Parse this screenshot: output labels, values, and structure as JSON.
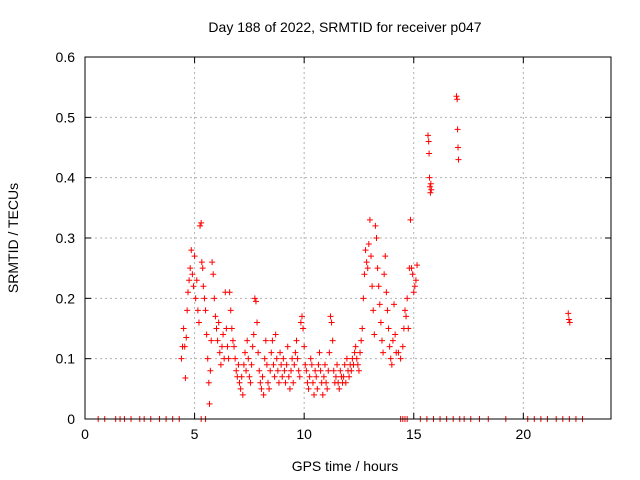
{
  "chart_data": {
    "type": "scatter",
    "title": "Day 188 of 2022, SRMTID for receiver p047",
    "xlabel": "GPS time / hours",
    "ylabel": "SRMTID / TECUs",
    "xlim": [
      0,
      24
    ],
    "ylim": [
      0,
      0.6
    ],
    "xticks": [
      0,
      5,
      10,
      15,
      20
    ],
    "yticks": [
      0,
      0.1,
      0.2,
      0.3,
      0.4,
      0.5,
      0.6
    ],
    "xtick_labels": [
      "0",
      "5",
      "10",
      "15",
      "20"
    ],
    "ytick_labels": [
      "0",
      "0.1",
      "0.2",
      "0.3",
      "0.4",
      "0.5",
      "0.6"
    ],
    "grid": true,
    "marker": "+",
    "color": "#ff0000",
    "series": [
      {
        "name": "SRMTID",
        "points": [
          [
            0.6,
            0
          ],
          [
            0.9,
            0
          ],
          [
            1.4,
            0
          ],
          [
            1.6,
            0
          ],
          [
            1.8,
            0
          ],
          [
            2.1,
            0
          ],
          [
            2.5,
            0
          ],
          [
            2.7,
            0
          ],
          [
            3.0,
            0
          ],
          [
            3.4,
            0
          ],
          [
            3.7,
            0
          ],
          [
            4.0,
            0
          ],
          [
            4.3,
            0
          ],
          [
            5.3,
            0
          ],
          [
            5.5,
            0
          ],
          [
            14.4,
            0
          ],
          [
            14.5,
            0
          ],
          [
            14.6,
            0
          ],
          [
            14.7,
            0
          ],
          [
            15.3,
            0
          ],
          [
            15.6,
            0
          ],
          [
            15.9,
            0
          ],
          [
            16.2,
            0
          ],
          [
            16.5,
            0
          ],
          [
            16.8,
            0
          ],
          [
            17.1,
            0
          ],
          [
            17.3,
            0
          ],
          [
            17.6,
            0
          ],
          [
            18.0,
            0
          ],
          [
            18.4,
            0
          ],
          [
            19.2,
            0
          ],
          [
            20.2,
            0
          ],
          [
            20.5,
            0
          ],
          [
            20.8,
            0
          ],
          [
            21.1,
            0
          ],
          [
            21.5,
            0
          ],
          [
            21.8,
            0
          ],
          [
            22.1,
            0
          ],
          [
            22.4,
            0
          ],
          [
            22.7,
            0
          ],
          [
            4.4,
            0.1
          ],
          [
            4.45,
            0.12
          ],
          [
            4.5,
            0.15
          ],
          [
            4.55,
            0.12
          ],
          [
            4.58,
            0.068
          ],
          [
            4.62,
            0.135
          ],
          [
            4.66,
            0.18
          ],
          [
            4.7,
            0.21
          ],
          [
            4.75,
            0.23
          ],
          [
            4.8,
            0.25
          ],
          [
            4.85,
            0.28
          ],
          [
            4.9,
            0.24
          ],
          [
            4.95,
            0.22
          ],
          [
            5.0,
            0.27
          ],
          [
            5.05,
            0.2
          ],
          [
            5.1,
            0.23
          ],
          [
            5.15,
            0.18
          ],
          [
            5.2,
            0.16
          ],
          [
            5.25,
            0.32
          ],
          [
            5.3,
            0.325
          ],
          [
            5.33,
            0.26
          ],
          [
            5.37,
            0.25
          ],
          [
            5.4,
            0.22
          ],
          [
            5.45,
            0.2
          ],
          [
            5.5,
            0.18
          ],
          [
            5.55,
            0.14
          ],
          [
            5.6,
            0.1
          ],
          [
            5.65,
            0.06
          ],
          [
            5.68,
            0.025
          ],
          [
            5.72,
            0.08
          ],
          [
            5.76,
            0.13
          ],
          [
            5.8,
            0.26
          ],
          [
            5.85,
            0.24
          ],
          [
            5.9,
            0.2
          ],
          [
            5.95,
            0.17
          ],
          [
            6.0,
            0.15
          ],
          [
            6.05,
            0.13
          ],
          [
            6.1,
            0.16
          ],
          [
            6.15,
            0.11
          ],
          [
            6.2,
            0.09
          ],
          [
            6.25,
            0.12
          ],
          [
            6.3,
            0.14
          ],
          [
            6.35,
            0.1
          ],
          [
            6.4,
            0.21
          ],
          [
            6.45,
            0.15
          ],
          [
            6.5,
            0.12
          ],
          [
            6.55,
            0.1
          ],
          [
            6.6,
            0.21
          ],
          [
            6.65,
            0.18
          ],
          [
            6.7,
            0.15
          ],
          [
            6.75,
            0.13
          ],
          [
            6.8,
            0.12
          ],
          [
            6.85,
            0.1
          ],
          [
            6.9,
            0.08
          ],
          [
            6.95,
            0.07
          ],
          [
            7.0,
            0.09
          ],
          [
            7.05,
            0.06
          ],
          [
            7.1,
            0.05
          ],
          [
            7.15,
            0.07
          ],
          [
            7.2,
            0.04
          ],
          [
            7.25,
            0.09
          ],
          [
            7.3,
            0.11
          ],
          [
            7.35,
            0.08
          ],
          [
            7.4,
            0.13
          ],
          [
            7.45,
            0.1
          ],
          [
            7.5,
            0.07
          ],
          [
            7.55,
            0.06
          ],
          [
            7.6,
            0.09
          ],
          [
            7.65,
            0.12
          ],
          [
            7.7,
            0.14
          ],
          [
            7.75,
            0.2
          ],
          [
            7.8,
            0.195
          ],
          [
            7.85,
            0.16
          ],
          [
            7.9,
            0.11
          ],
          [
            7.95,
            0.08
          ],
          [
            8.0,
            0.06
          ],
          [
            8.05,
            0.05
          ],
          [
            8.1,
            0.07
          ],
          [
            8.15,
            0.04
          ],
          [
            8.2,
            0.1
          ],
          [
            8.25,
            0.13
          ],
          [
            8.3,
            0.09
          ],
          [
            8.35,
            0.06
          ],
          [
            8.4,
            0.05
          ],
          [
            8.45,
            0.08
          ],
          [
            8.5,
            0.11
          ],
          [
            8.55,
            0.13
          ],
          [
            8.6,
            0.09
          ],
          [
            8.65,
            0.07
          ],
          [
            8.7,
            0.14
          ],
          [
            8.75,
            0.1
          ],
          [
            8.8,
            0.08
          ],
          [
            8.85,
            0.06
          ],
          [
            8.9,
            0.11
          ],
          [
            8.95,
            0.09
          ],
          [
            9.0,
            0.07
          ],
          [
            9.05,
            0.1
          ],
          [
            9.1,
            0.08
          ],
          [
            9.15,
            0.06
          ],
          [
            9.2,
            0.09
          ],
          [
            9.25,
            0.12
          ],
          [
            9.3,
            0.07
          ],
          [
            9.35,
            0.05
          ],
          [
            9.4,
            0.08
          ],
          [
            9.45,
            0.1
          ],
          [
            9.5,
            0.06
          ],
          [
            9.55,
            0.09
          ],
          [
            9.6,
            0.11
          ],
          [
            9.65,
            0.13
          ],
          [
            9.7,
            0.1
          ],
          [
            9.75,
            0.08
          ],
          [
            9.8,
            0.07
          ],
          [
            9.85,
            0.16
          ],
          [
            9.9,
            0.17
          ],
          [
            9.95,
            0.15
          ],
          [
            10.0,
            0.12
          ],
          [
            10.05,
            0.09
          ],
          [
            10.1,
            0.08
          ],
          [
            10.15,
            0.06
          ],
          [
            10.2,
            0.05
          ],
          [
            10.25,
            0.07
          ],
          [
            10.3,
            0.1
          ],
          [
            10.35,
            0.09
          ],
          [
            10.4,
            0.06
          ],
          [
            10.45,
            0.04
          ],
          [
            10.5,
            0.08
          ],
          [
            10.55,
            0.07
          ],
          [
            10.6,
            0.05
          ],
          [
            10.65,
            0.09
          ],
          [
            10.7,
            0.11
          ],
          [
            10.75,
            0.08
          ],
          [
            10.8,
            0.06
          ],
          [
            10.85,
            0.04
          ],
          [
            10.9,
            0.07
          ],
          [
            10.95,
            0.09
          ],
          [
            11.0,
            0.06
          ],
          [
            11.05,
            0.05
          ],
          [
            11.1,
            0.08
          ],
          [
            11.15,
            0.11
          ],
          [
            11.2,
            0.17
          ],
          [
            11.25,
            0.16
          ],
          [
            11.3,
            0.13
          ],
          [
            11.35,
            0.08
          ],
          [
            11.4,
            0.06
          ],
          [
            11.45,
            0.07
          ],
          [
            11.5,
            0.09
          ],
          [
            11.55,
            0.06
          ],
          [
            11.6,
            0.05
          ],
          [
            11.65,
            0.08
          ],
          [
            11.7,
            0.07
          ],
          [
            11.75,
            0.06
          ],
          [
            11.8,
            0.07
          ],
          [
            11.85,
            0.09
          ],
          [
            11.9,
            0.06
          ],
          [
            11.95,
            0.1
          ],
          [
            12.0,
            0.08
          ],
          [
            12.05,
            0.07
          ],
          [
            12.1,
            0.09
          ],
          [
            12.15,
            0.08
          ],
          [
            12.2,
            0.1
          ],
          [
            12.25,
            0.09
          ],
          [
            12.3,
            0.11
          ],
          [
            12.35,
            0.12
          ],
          [
            12.4,
            0.1
          ],
          [
            12.45,
            0.09
          ],
          [
            12.5,
            0.08
          ],
          [
            12.55,
            0.11
          ],
          [
            12.6,
            0.13
          ],
          [
            12.65,
            0.15
          ],
          [
            12.7,
            0.2
          ],
          [
            12.75,
            0.24
          ],
          [
            12.8,
            0.28
          ],
          [
            12.85,
            0.26
          ],
          [
            12.9,
            0.25
          ],
          [
            12.95,
            0.29
          ],
          [
            13.0,
            0.33
          ],
          [
            13.05,
            0.27
          ],
          [
            13.1,
            0.22
          ],
          [
            13.15,
            0.18
          ],
          [
            13.2,
            0.14
          ],
          [
            13.25,
            0.32
          ],
          [
            13.3,
            0.3
          ],
          [
            13.35,
            0.25
          ],
          [
            13.4,
            0.22
          ],
          [
            13.45,
            0.19
          ],
          [
            13.5,
            0.16
          ],
          [
            13.55,
            0.13
          ],
          [
            13.6,
            0.11
          ],
          [
            13.65,
            0.24
          ],
          [
            13.7,
            0.27
          ],
          [
            13.75,
            0.21
          ],
          [
            13.8,
            0.18
          ],
          [
            13.85,
            0.15
          ],
          [
            13.9,
            0.12
          ],
          [
            13.95,
            0.1
          ],
          [
            14.0,
            0.09
          ],
          [
            14.05,
            0.13
          ],
          [
            14.1,
            0.19
          ],
          [
            14.15,
            0.14
          ],
          [
            14.2,
            0.11
          ],
          [
            14.3,
            0.11
          ],
          [
            14.4,
            0.1
          ],
          [
            14.5,
            0.12
          ],
          [
            14.55,
            0.15
          ],
          [
            14.6,
            0.18
          ],
          [
            14.65,
            0.17
          ],
          [
            14.7,
            0.2
          ],
          [
            14.75,
            0.15
          ],
          [
            14.8,
            0.25
          ],
          [
            14.85,
            0.33
          ],
          [
            14.9,
            0.25
          ],
          [
            14.95,
            0.24
          ],
          [
            15.0,
            0.21
          ],
          [
            15.05,
            0.22
          ],
          [
            15.1,
            0.23
          ],
          [
            15.15,
            0.255
          ],
          [
            15.65,
            0.47
          ],
          [
            15.68,
            0.46
          ],
          [
            15.7,
            0.44
          ],
          [
            15.72,
            0.4
          ],
          [
            15.74,
            0.385
          ],
          [
            15.76,
            0.375
          ],
          [
            15.78,
            0.39
          ],
          [
            15.8,
            0.38
          ],
          [
            16.95,
            0.535
          ],
          [
            16.98,
            0.53
          ],
          [
            17.0,
            0.48
          ],
          [
            17.02,
            0.45
          ],
          [
            17.04,
            0.43
          ],
          [
            22.05,
            0.175
          ],
          [
            22.08,
            0.165
          ],
          [
            22.12,
            0.16
          ]
        ]
      }
    ]
  }
}
